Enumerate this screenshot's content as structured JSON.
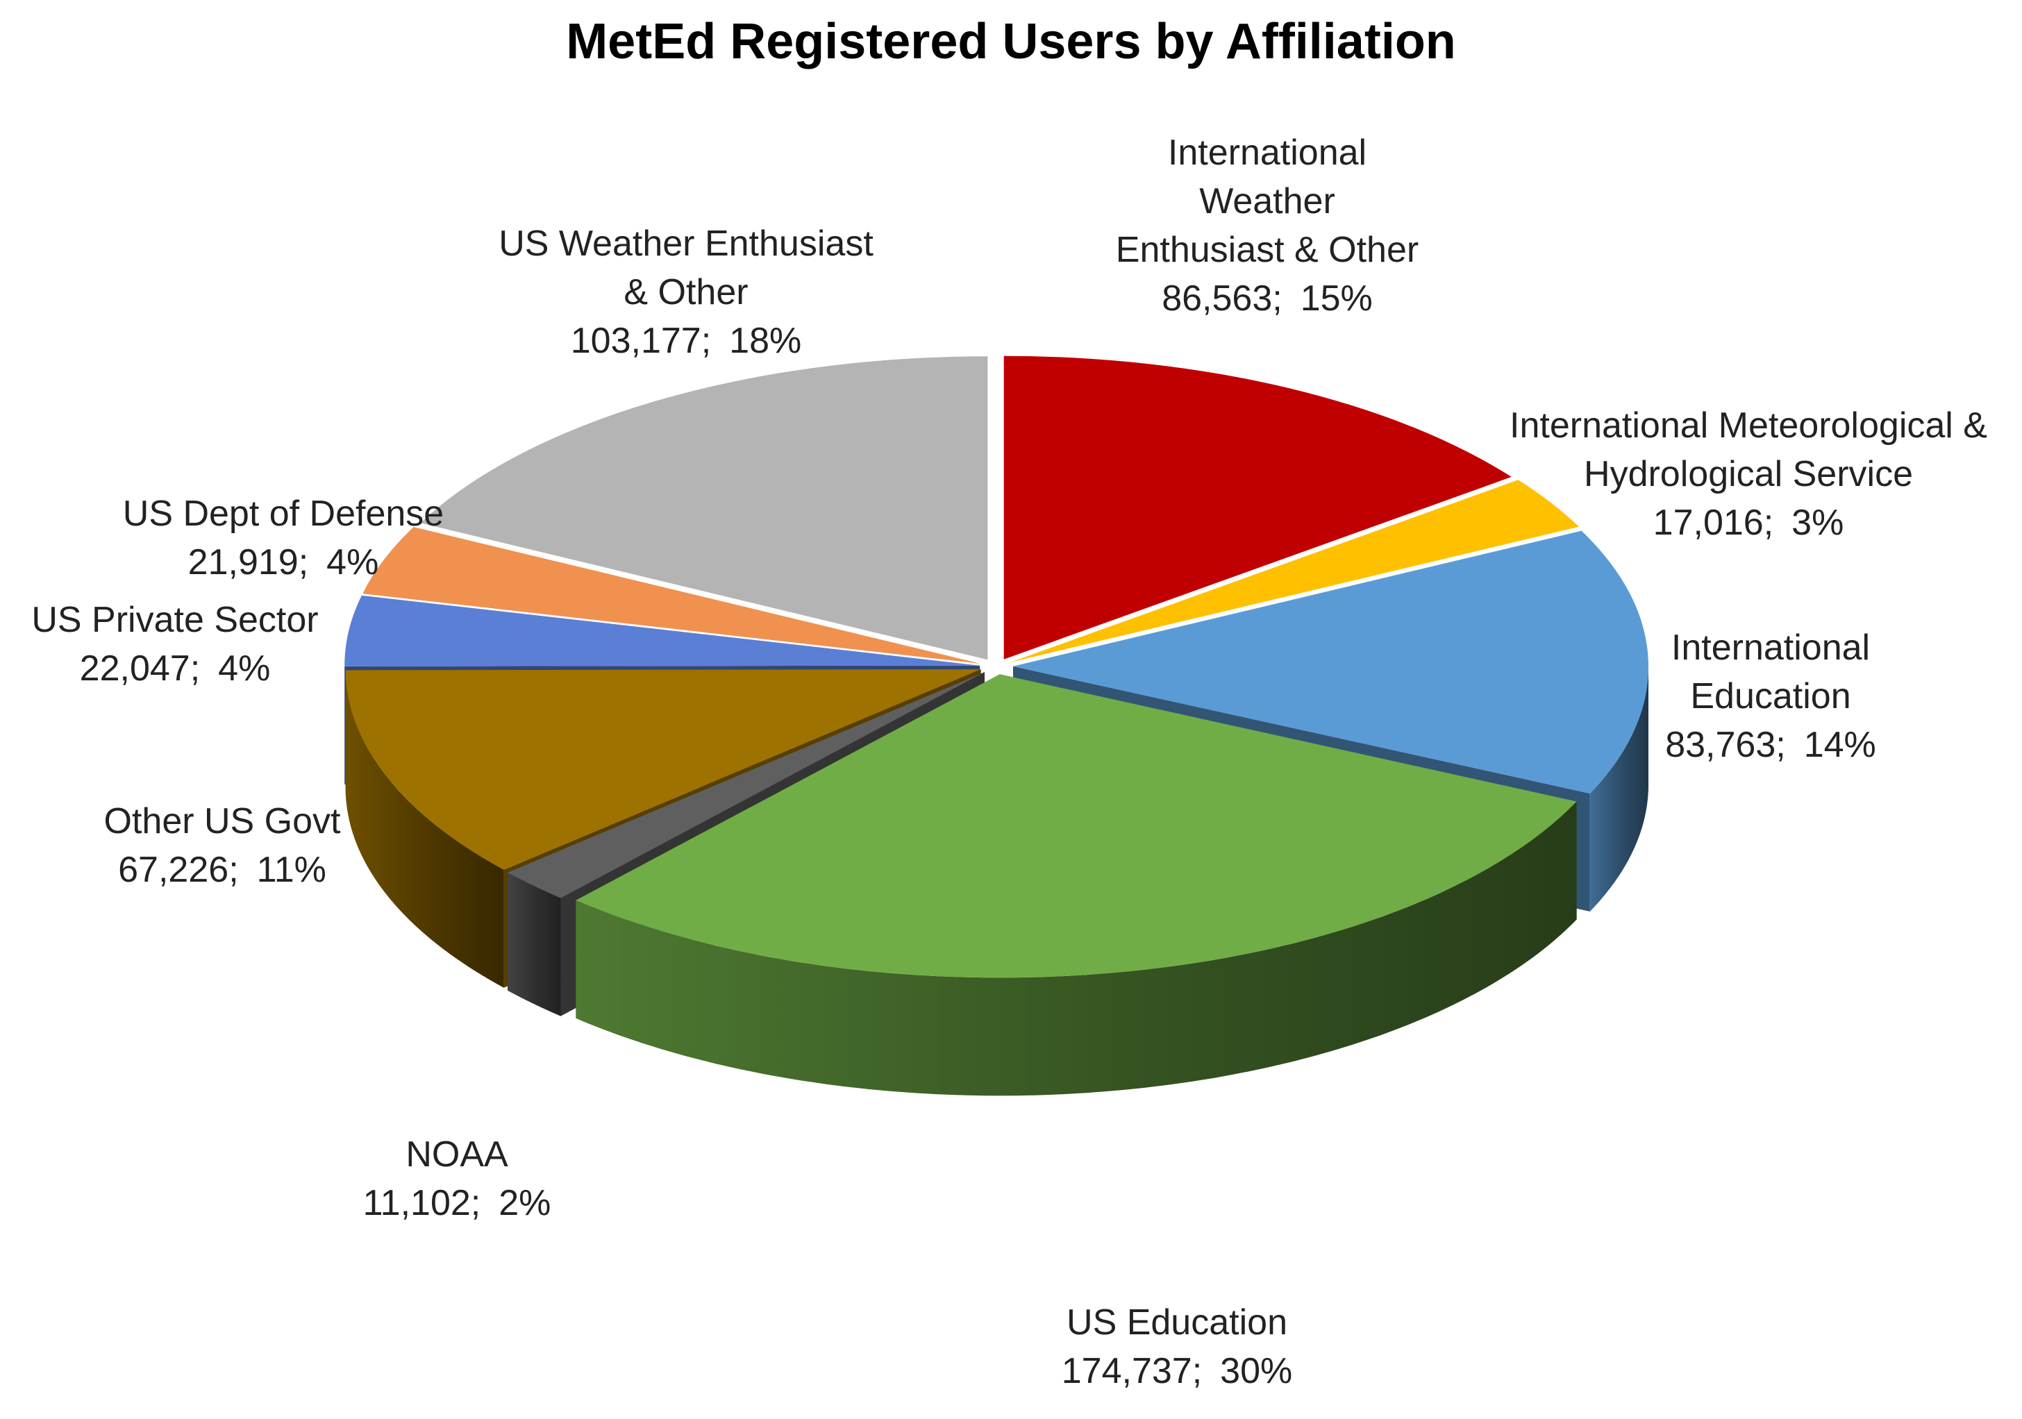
{
  "chart_data": {
    "type": "pie",
    "title": "MetEd Registered Users by Affiliation",
    "style": "3d-exploded-tilted",
    "slices": [
      {
        "name": "International Weather Enthusiast & Other",
        "label_lines": [
          "International",
          "Weather",
          "Enthusiast & Other"
        ],
        "value": 86563,
        "value_label": "86,563;",
        "percent_label": "15%",
        "color": "#C00000"
      },
      {
        "name": "International Meteorological & Hydrological Service",
        "label_lines": [
          "International Meteorological &",
          "Hydrological Service"
        ],
        "value": 17016,
        "value_label": "17,016;",
        "percent_label": "3%",
        "color": "#FFC000"
      },
      {
        "name": "International Education",
        "label_lines": [
          "International",
          "Education"
        ],
        "value": 83763,
        "value_label": "83,763;",
        "percent_label": "14%",
        "color": "#5B9BD5"
      },
      {
        "name": "US Education",
        "label_lines": [
          "US Education"
        ],
        "value": 174737,
        "value_label": "174,737;",
        "percent_label": "30%",
        "color": "#70AD47"
      },
      {
        "name": "NOAA",
        "label_lines": [
          "NOAA"
        ],
        "value": 11102,
        "value_label": "11,102;",
        "percent_label": "2%",
        "color": "#5F5F5F"
      },
      {
        "name": "Other US Govt",
        "label_lines": [
          "Other US Govt"
        ],
        "value": 67226,
        "value_label": "67,226;",
        "percent_label": "11%",
        "color": "#9E7200"
      },
      {
        "name": "US Private Sector",
        "label_lines": [
          "US Private Sector"
        ],
        "value": 22047,
        "value_label": "22,047;",
        "percent_label": "4%",
        "color": "#5B7FD5"
      },
      {
        "name": "US Dept of Defense",
        "label_lines": [
          "US Dept of Defense"
        ],
        "value": 21919,
        "value_label": "21,919;",
        "percent_label": "4%",
        "color": "#F0914F"
      },
      {
        "name": "US Weather Enthusiast & Other",
        "label_lines": [
          "US Weather Enthusiast",
          "& Other"
        ],
        "value": 103177,
        "value_label": "103,177;",
        "percent_label": "18%",
        "color": "#B4B4B4"
      }
    ],
    "start_angle": "12 o'clock",
    "direction": "clockwise",
    "legend": "none",
    "labels": "outside"
  }
}
